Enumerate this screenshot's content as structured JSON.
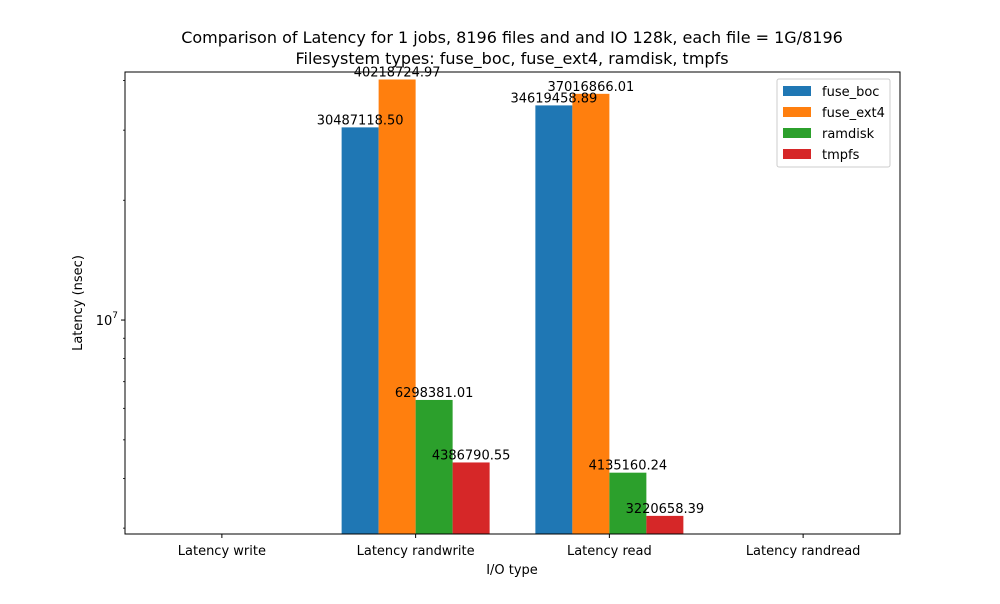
{
  "chart_data": {
    "type": "bar",
    "title": "Comparison of Latency for 1 jobs, 8196 files and  and IO 128k, each file = 1G/8196",
    "subtitle": "Filesystem types: fuse_boc, fuse_ext4, ramdisk, tmpfs",
    "xlabel": "I/O type",
    "ylabel": "Latency (nsec)",
    "y_scale": "log",
    "ylim": [
      2900000,
      42000000
    ],
    "ytick_label": {
      "base": "10",
      "exponent": "7",
      "value": 10000000
    },
    "categories": [
      "Latency write",
      "Latency randwrite",
      "Latency read",
      "Latency randread"
    ],
    "series": [
      {
        "name": "fuse_boc",
        "color": "#1f77b4",
        "values": [
          null,
          30487118.5,
          34619458.89,
          null
        ],
        "labels": [
          "",
          "30487118.50",
          "34619458.89",
          ""
        ]
      },
      {
        "name": "fuse_ext4",
        "color": "#ff7f0e",
        "values": [
          null,
          40218724.97,
          37016866.01,
          null
        ],
        "labels": [
          "",
          "40218724.97",
          "37016866.01",
          ""
        ]
      },
      {
        "name": "ramdisk",
        "color": "#2ca02c",
        "values": [
          null,
          6298381.01,
          4135160.24,
          null
        ],
        "labels": [
          "",
          "6298381.01",
          "4135160.24",
          ""
        ]
      },
      {
        "name": "tmpfs",
        "color": "#d62728",
        "values": [
          null,
          4386790.55,
          3220658.39,
          null
        ],
        "labels": [
          "",
          "4386790.55",
          "3220658.39",
          ""
        ]
      }
    ],
    "grid": false,
    "legend_position": "top-right"
  }
}
